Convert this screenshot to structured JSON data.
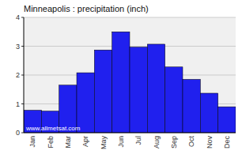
{
  "chart_data": {
    "type": "bar",
    "title": "Minneapolis : precipitation (inch)",
    "categories": [
      "Jan",
      "Feb",
      "Mar",
      "Apr",
      "May",
      "Jun",
      "Jul",
      "Aug",
      "Sep",
      "Oct",
      "Nov",
      "Dec"
    ],
    "values": [
      0.78,
      0.75,
      1.65,
      2.08,
      2.87,
      3.5,
      2.97,
      3.07,
      2.28,
      1.85,
      1.37,
      0.9
    ],
    "color": "#2020ee",
    "ylim": [
      0,
      4
    ],
    "yticks": [
      0,
      1,
      2,
      3,
      4
    ],
    "grid": true,
    "annotations": [
      "www.allmetsat.com"
    ]
  }
}
